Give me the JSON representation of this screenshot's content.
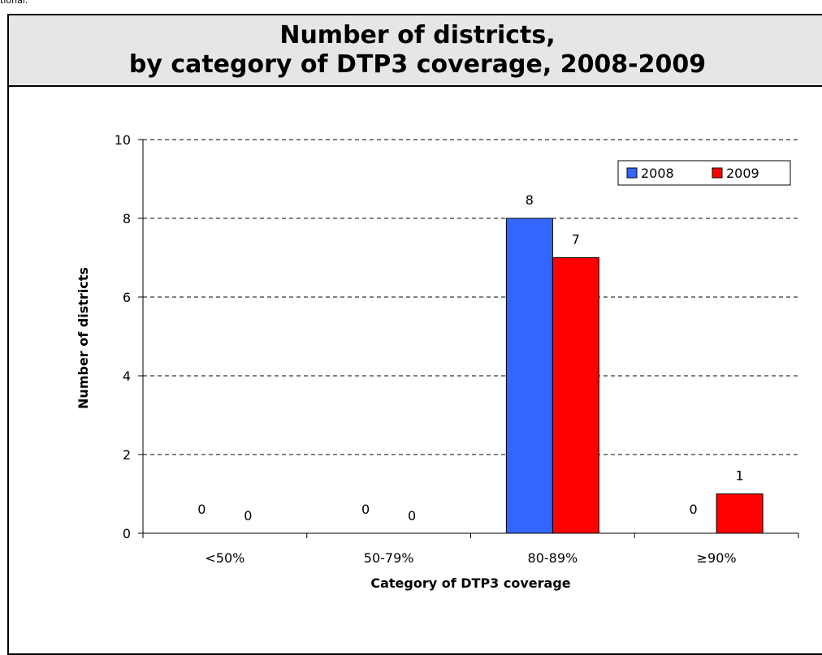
{
  "top_text": "tional.",
  "title_lines": [
    "Number of districts,",
    "by category of DTP3 coverage, 2008-2009"
  ],
  "chart_data": {
    "type": "bar",
    "title": "Number of districts, by category of DTP3 coverage, 2008-2009",
    "xlabel": "Category of DTP3 coverage",
    "ylabel": "Number of districts",
    "ylim": [
      0,
      10
    ],
    "yticks": [
      0,
      2,
      4,
      6,
      8,
      10
    ],
    "grid": "dashed horizontal",
    "legend": "top-right",
    "categories": [
      "<50%",
      "50-79%",
      "80-89%",
      "≥90%"
    ],
    "series": [
      {
        "name": "2008",
        "color": "#3366ff",
        "values": [
          0,
          0,
          8,
          0
        ],
        "labels": [
          "0",
          "0",
          "8",
          "0"
        ]
      },
      {
        "name": "2009",
        "color": "#ff0000",
        "values": [
          0,
          0,
          7,
          1
        ],
        "labels": [
          "0",
          "0",
          "7",
          "1"
        ]
      }
    ]
  }
}
